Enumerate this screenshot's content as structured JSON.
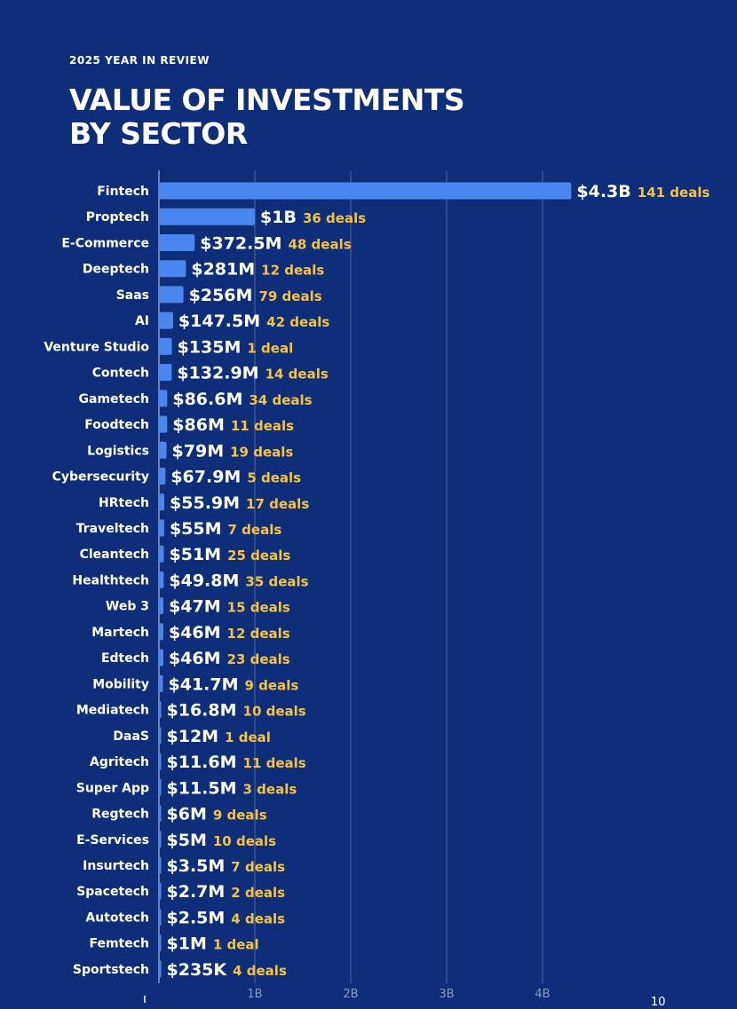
{
  "header": {
    "eyebrow": "2025 YEAR IN REVIEW",
    "title_line1": "VALUE OF INVESTMENTS",
    "title_line2": "BY SECTOR"
  },
  "page_number": "10",
  "colors": {
    "background": "#0f2e79",
    "bar": "#4a86f0",
    "deals": "#f5c242",
    "grid": "#4a5f96"
  },
  "chart_data": {
    "type": "bar",
    "orientation": "horizontal",
    "title": "VALUE OF INVESTMENTS BY SECTOR",
    "xlim": [
      0,
      4500000000
    ],
    "grid": true,
    "ticks": [
      {
        "value": 1000000000,
        "label": "1B"
      },
      {
        "value": 2000000000,
        "label": "2B"
      },
      {
        "value": 3000000000,
        "label": "3B"
      },
      {
        "value": 4000000000,
        "label": "4B"
      }
    ],
    "categories": [
      "Fintech",
      "Proptech",
      "E-Commerce",
      "Deeptech",
      "Saas",
      "AI",
      "Venture Studio",
      "Contech",
      "Gametech",
      "Foodtech",
      "Logistics",
      "Cybersecurity",
      "HRtech",
      "Traveltech",
      "Cleantech",
      "Healthtech",
      "Web 3",
      "Martech",
      "Edtech",
      "Mobility",
      "Mediatech",
      "DaaS",
      "Agritech",
      "Super App",
      "Regtech",
      "E-Services",
      "Insurtech",
      "Spacetech",
      "Autotech",
      "Femtech",
      "Sportstech"
    ],
    "values": [
      4300000000,
      1000000000,
      372500000,
      281000000,
      256000000,
      147500000,
      135000000,
      132900000,
      86600000,
      86000000,
      79000000,
      67900000,
      55900000,
      55000000,
      51000000,
      49800000,
      47000000,
      46000000,
      46000000,
      41700000,
      16800000,
      12000000,
      11600000,
      11500000,
      6000000,
      5000000,
      3500000,
      2700000,
      2500000,
      1000000,
      235000
    ],
    "value_labels": [
      "$4.3B",
      "$1B",
      "$372.5M",
      "$281M",
      "$256M",
      "$147.5M",
      "$135M",
      "$132.9M",
      "$86.6M",
      "$86M",
      "$79M",
      "$67.9M",
      "$55.9M",
      "$55M",
      "$51M",
      "$49.8M",
      "$47M",
      "$46M",
      "$46M",
      "$41.7M",
      "$16.8M",
      "$12M",
      "$11.6M",
      "$11.5M",
      "$6M",
      "$5M",
      "$3.5M",
      "$2.7M",
      "$2.5M",
      "$1M",
      "$235K"
    ],
    "deal_labels": [
      "141 deals",
      "36 deals",
      "48 deals",
      "12 deals",
      "79 deals",
      "42 deals",
      "1 deal",
      "14 deals",
      "34 deals",
      "11 deals",
      "19 deals",
      "5 deals",
      "17 deals",
      "7 deals",
      "25 deals",
      "35 deals",
      "15 deals",
      "12 deals",
      "23 deals",
      "9 deals",
      "10 deals",
      "1 deal",
      "11 deals",
      "3 deals",
      "9 deals",
      "10 deals",
      "7 deals",
      "2 deals",
      "4 deals",
      "1 deal",
      "4 deals"
    ]
  }
}
